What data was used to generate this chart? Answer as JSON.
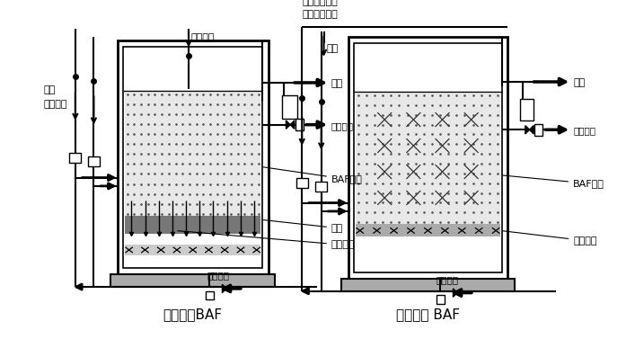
{
  "title1": "陶粒滤料BAF",
  "title2": "轻质滤料 BAF",
  "bg_color": "#ffffff",
  "line_color": "#000000",
  "label_L_qiqikongqi": "曝气空气",
  "label_L_fanxi_kongqi": "反洗\n空气进水",
  "label_L_chushui": "出水",
  "label_L_fanxi_paishui": "反洗排水",
  "label_L_BAF_lvliao": "BAF滤料",
  "label_L_lvban": "滤板",
  "label_L_changbing": "长柄滤头",
  "label_L_fanxi_jinshui": "反洗进水",
  "label_R_qiqi": "曝气空气备用",
  "label_R_fengji": "风机开启反洗",
  "label_R_jinshui": "进水",
  "label_R_chushui": "出水",
  "label_R_fanxi_paishui": "反洗排水",
  "label_R_BAF": "BAF滤料",
  "label_R_kuangjia": "滤料框架",
  "label_R_fanxi_jinshui": "反洗进水"
}
